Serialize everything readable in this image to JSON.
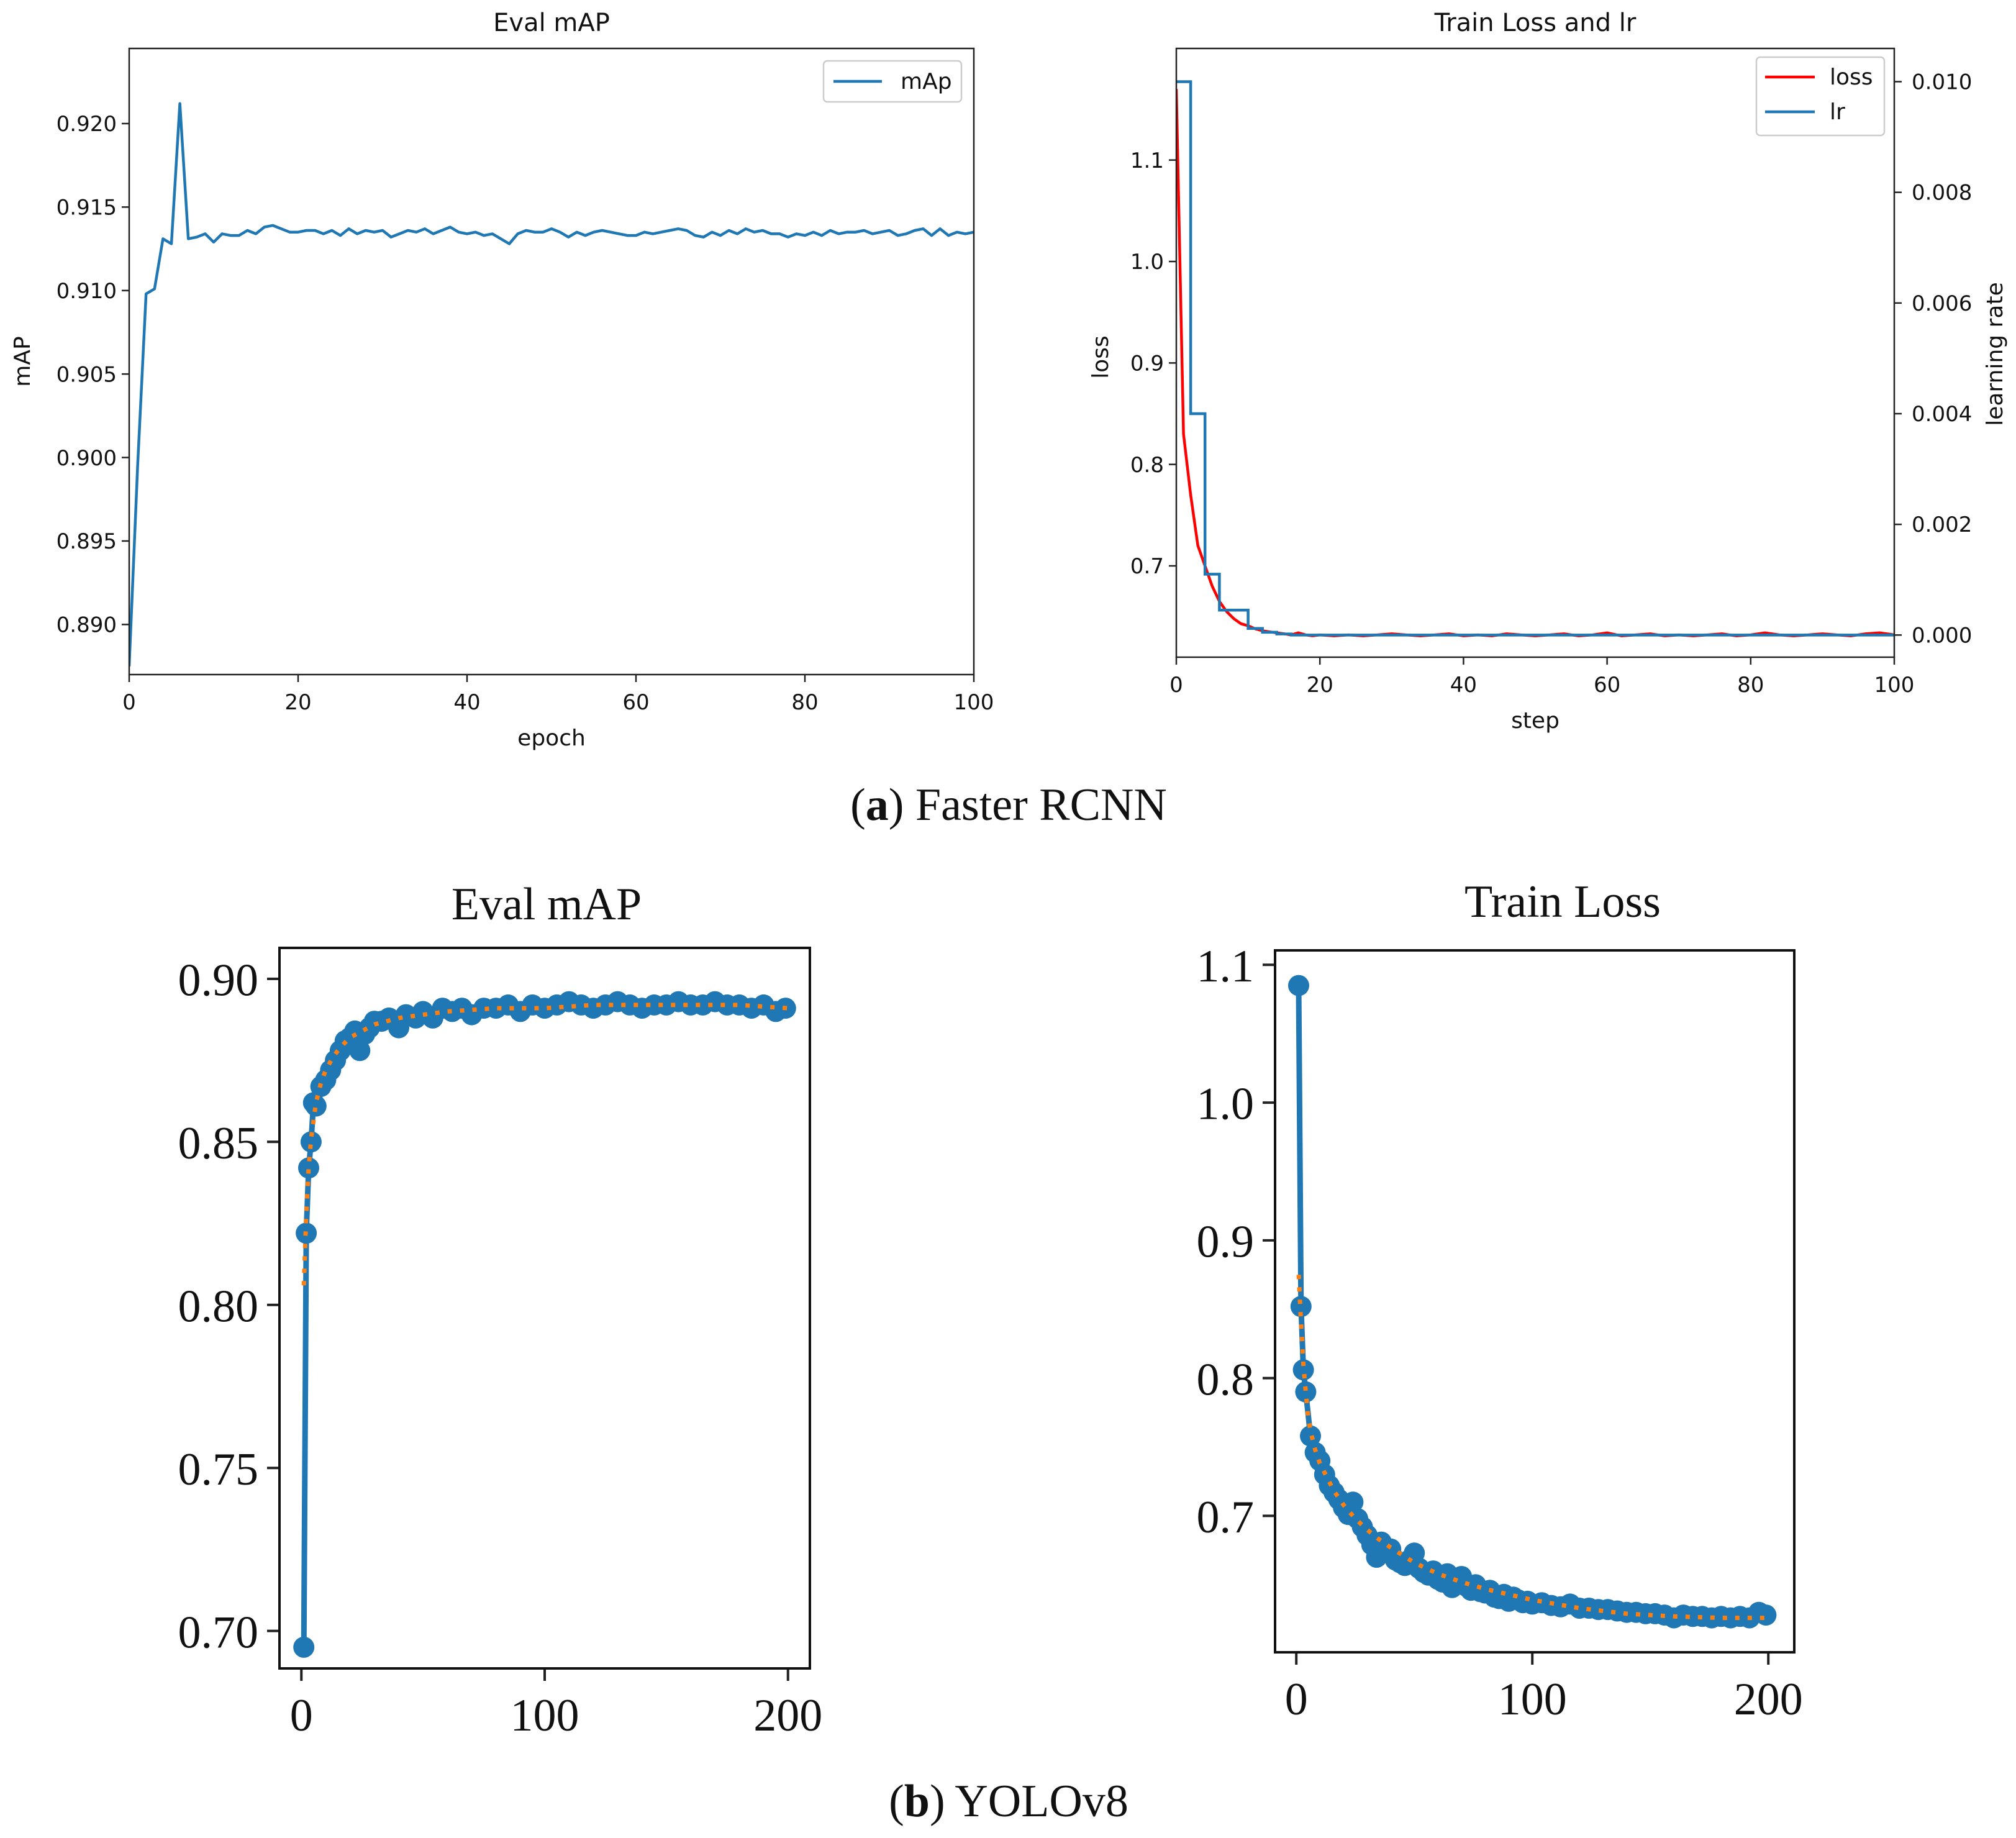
{
  "captions": {
    "a_letter": "a",
    "a_text": "Faster RCNN",
    "b_letter": "b",
    "b_text": "YOLOv8"
  },
  "colors": {
    "map_line": "#1f77b4",
    "loss_red": "#ff0000",
    "lr_blue": "#1f77b4",
    "yolo_marker": "#1f77b4",
    "yolo_fit": "#ff7f0e"
  },
  "chart_data": [
    {
      "id": "frcnn_map",
      "type": "line",
      "title": "Eval mAP",
      "xlabel": "epoch",
      "ylabel": "mAP",
      "xlim": [
        0,
        100
      ],
      "ylim": [
        0.887,
        0.9245
      ],
      "xticks": [
        0,
        20,
        40,
        60,
        80,
        100
      ],
      "yticks": [
        0.89,
        0.895,
        0.9,
        0.905,
        0.91,
        0.915,
        0.92
      ],
      "ytick_labels": [
        "0.890",
        "0.895",
        "0.900",
        "0.905",
        "0.910",
        "0.915",
        "0.920"
      ],
      "legend": [
        "mAp"
      ],
      "legend_position": "top-right",
      "series": [
        {
          "name": "mAp",
          "x": [
            0,
            1,
            2,
            3,
            4,
            5,
            6,
            7,
            8,
            9,
            10,
            11,
            12,
            13,
            14,
            15,
            16,
            17,
            18,
            19,
            20,
            21,
            22,
            23,
            24,
            25,
            26,
            27,
            28,
            29,
            30,
            31,
            32,
            33,
            34,
            35,
            36,
            37,
            38,
            39,
            40,
            41,
            42,
            43,
            44,
            45,
            46,
            47,
            48,
            49,
            50,
            51,
            52,
            53,
            54,
            55,
            56,
            57,
            58,
            59,
            60,
            61,
            62,
            63,
            64,
            65,
            66,
            67,
            68,
            69,
            70,
            71,
            72,
            73,
            74,
            75,
            76,
            77,
            78,
            79,
            80,
            81,
            82,
            83,
            84,
            85,
            86,
            87,
            88,
            89,
            90,
            91,
            92,
            93,
            94,
            95,
            96,
            97,
            98,
            99,
            100
          ],
          "y": [
            0.8875,
            0.8995,
            0.9098,
            0.9101,
            0.9131,
            0.9128,
            0.9212,
            0.9131,
            0.9132,
            0.9134,
            0.9129,
            0.9134,
            0.9133,
            0.9133,
            0.9136,
            0.9134,
            0.9138,
            0.9139,
            0.9137,
            0.9135,
            0.9135,
            0.9136,
            0.9136,
            0.9134,
            0.9136,
            0.9133,
            0.9137,
            0.9134,
            0.9136,
            0.9135,
            0.9136,
            0.9132,
            0.9134,
            0.9136,
            0.9135,
            0.9137,
            0.9134,
            0.9136,
            0.9138,
            0.9135,
            0.9134,
            0.9135,
            0.9133,
            0.9134,
            0.9131,
            0.9128,
            0.9134,
            0.9136,
            0.9135,
            0.9135,
            0.9137,
            0.9135,
            0.9132,
            0.9135,
            0.9133,
            0.9135,
            0.9136,
            0.9135,
            0.9134,
            0.9133,
            0.9133,
            0.9135,
            0.9134,
            0.9135,
            0.9136,
            0.9137,
            0.9136,
            0.9133,
            0.9132,
            0.9135,
            0.9133,
            0.9136,
            0.9134,
            0.9137,
            0.9135,
            0.9136,
            0.9134,
            0.9134,
            0.9132,
            0.9134,
            0.9133,
            0.9135,
            0.9133,
            0.9136,
            0.9134,
            0.9135,
            0.9135,
            0.9136,
            0.9134,
            0.9135,
            0.9136,
            0.9133,
            0.9134,
            0.9136,
            0.9137,
            0.9133,
            0.9137,
            0.9133,
            0.9135,
            0.9134,
            0.9135
          ]
        }
      ]
    },
    {
      "id": "frcnn_loss_lr",
      "type": "line",
      "title": "Train Loss and lr",
      "xlabel": "step",
      "ylabel": "loss",
      "ylabel_right": "learning rate",
      "xlim": [
        0,
        100
      ],
      "ylim": [
        0.61,
        1.21
      ],
      "ylim_right": [
        -0.0004,
        0.0106
      ],
      "xticks": [
        0,
        20,
        40,
        60,
        80,
        100
      ],
      "yticks": [
        0.7,
        0.8,
        0.9,
        1.0,
        1.1
      ],
      "ytick_labels": [
        "0.7",
        "0.8",
        "0.9",
        "1.0",
        "1.1"
      ],
      "yticks_right": [
        0.0,
        0.002,
        0.004,
        0.006,
        0.008,
        0.01
      ],
      "ytick_right_labels": [
        "0.000",
        "0.002",
        "0.004",
        "0.006",
        "0.008",
        "0.010"
      ],
      "legend": [
        "loss",
        "lr"
      ],
      "legend_position": "top-right",
      "series": [
        {
          "name": "loss",
          "axis": "left",
          "x": [
            0,
            1,
            2,
            3,
            4,
            5,
            6,
            7,
            8,
            9,
            10,
            11,
            12,
            13,
            14,
            15,
            16,
            17,
            18,
            19,
            20,
            22,
            24,
            26,
            28,
            30,
            32,
            34,
            36,
            38,
            40,
            42,
            44,
            46,
            48,
            50,
            52,
            54,
            56,
            58,
            60,
            62,
            64,
            66,
            68,
            70,
            72,
            74,
            76,
            78,
            80,
            82,
            84,
            86,
            88,
            90,
            92,
            94,
            96,
            98,
            100
          ],
          "y": [
            1.17,
            0.83,
            0.77,
            0.72,
            0.7,
            0.68,
            0.665,
            0.655,
            0.648,
            0.643,
            0.641,
            0.638,
            0.636,
            0.635,
            0.634,
            0.633,
            0.632,
            0.634,
            0.632,
            0.631,
            0.632,
            0.631,
            0.632,
            0.631,
            0.632,
            0.633,
            0.632,
            0.631,
            0.632,
            0.633,
            0.631,
            0.632,
            0.631,
            0.633,
            0.632,
            0.631,
            0.632,
            0.633,
            0.631,
            0.632,
            0.634,
            0.631,
            0.632,
            0.633,
            0.631,
            0.632,
            0.631,
            0.632,
            0.633,
            0.631,
            0.632,
            0.634,
            0.632,
            0.631,
            0.632,
            0.633,
            0.632,
            0.631,
            0.633,
            0.634,
            0.632
          ]
        },
        {
          "name": "lr",
          "axis": "right",
          "x": [
            0,
            2,
            2,
            4,
            4,
            6,
            6,
            8,
            8,
            10,
            10,
            12,
            12,
            14,
            14,
            16,
            16,
            100
          ],
          "y": [
            0.01,
            0.01,
            0.004,
            0.004,
            0.0011,
            0.0011,
            0.00045,
            0.00045,
            0.00045,
            0.00045,
            0.00012,
            0.00012,
            5e-05,
            5e-05,
            2e-05,
            2e-05,
            0.0,
            0.0
          ]
        }
      ]
    },
    {
      "id": "yolo_map",
      "type": "scatter",
      "title": "Eval mAP",
      "xlabel": "",
      "ylabel": "",
      "xlim": [
        -9,
        209
      ],
      "ylim": [
        0.6885,
        0.9095
      ],
      "xticks": [
        0,
        100,
        200
      ],
      "yticks": [
        0.7,
        0.75,
        0.8,
        0.85,
        0.9
      ],
      "ytick_labels": [
        "0.70",
        "0.75",
        "0.80",
        "0.85",
        "0.90"
      ],
      "series": [
        {
          "name": "mAP",
          "x": [
            1,
            2,
            3,
            4,
            5,
            6,
            8,
            10,
            12,
            14,
            16,
            18,
            20,
            22,
            24,
            26,
            28,
            30,
            33,
            36,
            40,
            43,
            47,
            50,
            54,
            58,
            62,
            66,
            70,
            75,
            80,
            85,
            90,
            95,
            100,
            105,
            110,
            115,
            120,
            125,
            130,
            135,
            140,
            145,
            150,
            155,
            160,
            165,
            170,
            175,
            180,
            185,
            190,
            195,
            199
          ],
          "y": [
            0.695,
            0.822,
            0.842,
            0.85,
            0.862,
            0.861,
            0.867,
            0.869,
            0.872,
            0.875,
            0.878,
            0.881,
            0.882,
            0.884,
            0.878,
            0.883,
            0.885,
            0.887,
            0.887,
            0.888,
            0.885,
            0.889,
            0.888,
            0.89,
            0.888,
            0.891,
            0.89,
            0.891,
            0.889,
            0.891,
            0.891,
            0.892,
            0.89,
            0.892,
            0.891,
            0.892,
            0.893,
            0.892,
            0.891,
            0.892,
            0.893,
            0.892,
            0.891,
            0.892,
            0.892,
            0.893,
            0.892,
            0.892,
            0.893,
            0.892,
            0.892,
            0.891,
            0.892,
            0.89,
            0.891
          ]
        },
        {
          "name": "fit",
          "x": [
            1,
            2,
            3,
            4,
            6,
            8,
            10,
            13,
            16,
            20,
            25,
            30,
            40,
            50,
            60,
            80,
            100,
            120,
            140,
            160,
            180,
            200
          ],
          "y": [
            0.806,
            0.828,
            0.842,
            0.851,
            0.862,
            0.868,
            0.872,
            0.876,
            0.879,
            0.882,
            0.884,
            0.886,
            0.888,
            0.889,
            0.89,
            0.891,
            0.891,
            0.892,
            0.892,
            0.892,
            0.892,
            0.891
          ]
        }
      ]
    },
    {
      "id": "yolo_loss",
      "type": "scatter",
      "title": "Train Loss",
      "xlabel": "",
      "ylabel": "",
      "xlim": [
        -9,
        211
      ],
      "ylim": [
        0.601,
        1.1105
      ],
      "xticks": [
        0,
        100,
        200
      ],
      "yticks": [
        0.7,
        0.8,
        0.9,
        1.0,
        1.1
      ],
      "ytick_labels": [
        "0.7",
        "0.8",
        "0.9",
        "1.0",
        "1.1"
      ],
      "series": [
        {
          "name": "loss",
          "x": [
            1,
            2,
            3,
            4,
            6,
            8,
            10,
            12,
            14,
            16,
            18,
            20,
            22,
            24,
            26,
            28,
            30,
            32,
            34,
            36,
            38,
            40,
            42,
            44,
            46,
            48,
            50,
            52,
            54,
            56,
            58,
            60,
            62,
            64,
            66,
            68,
            70,
            72,
            74,
            76,
            78,
            80,
            82,
            84,
            86,
            88,
            90,
            92,
            94,
            96,
            98,
            100,
            104,
            108,
            112,
            116,
            120,
            124,
            128,
            132,
            136,
            140,
            144,
            148,
            152,
            156,
            160,
            164,
            168,
            172,
            176,
            180,
            184,
            188,
            192,
            196,
            199
          ],
          "y": [
            1.085,
            0.852,
            0.806,
            0.79,
            0.758,
            0.746,
            0.74,
            0.73,
            0.722,
            0.717,
            0.712,
            0.706,
            0.701,
            0.71,
            0.698,
            0.692,
            0.686,
            0.679,
            0.67,
            0.681,
            0.675,
            0.676,
            0.668,
            0.666,
            0.664,
            0.668,
            0.673,
            0.662,
            0.659,
            0.657,
            0.66,
            0.654,
            0.652,
            0.658,
            0.648,
            0.651,
            0.656,
            0.649,
            0.646,
            0.65,
            0.645,
            0.644,
            0.646,
            0.641,
            0.64,
            0.643,
            0.638,
            0.641,
            0.639,
            0.637,
            0.638,
            0.636,
            0.637,
            0.635,
            0.634,
            0.636,
            0.633,
            0.633,
            0.632,
            0.632,
            0.631,
            0.63,
            0.63,
            0.629,
            0.629,
            0.628,
            0.626,
            0.628,
            0.627,
            0.627,
            0.626,
            0.627,
            0.626,
            0.627,
            0.626,
            0.63,
            0.628
          ]
        },
        {
          "name": "fit",
          "x": [
            1,
            2,
            3,
            4,
            5,
            6,
            8,
            10,
            13,
            16,
            20,
            25,
            30,
            35,
            40,
            50,
            60,
            70,
            80,
            100,
            120,
            140,
            160,
            180,
            200
          ],
          "y": [
            0.875,
            0.84,
            0.81,
            0.79,
            0.772,
            0.762,
            0.748,
            0.738,
            0.728,
            0.718,
            0.708,
            0.698,
            0.69,
            0.683,
            0.677,
            0.666,
            0.658,
            0.652,
            0.647,
            0.639,
            0.633,
            0.629,
            0.627,
            0.626,
            0.626
          ]
        }
      ]
    }
  ]
}
